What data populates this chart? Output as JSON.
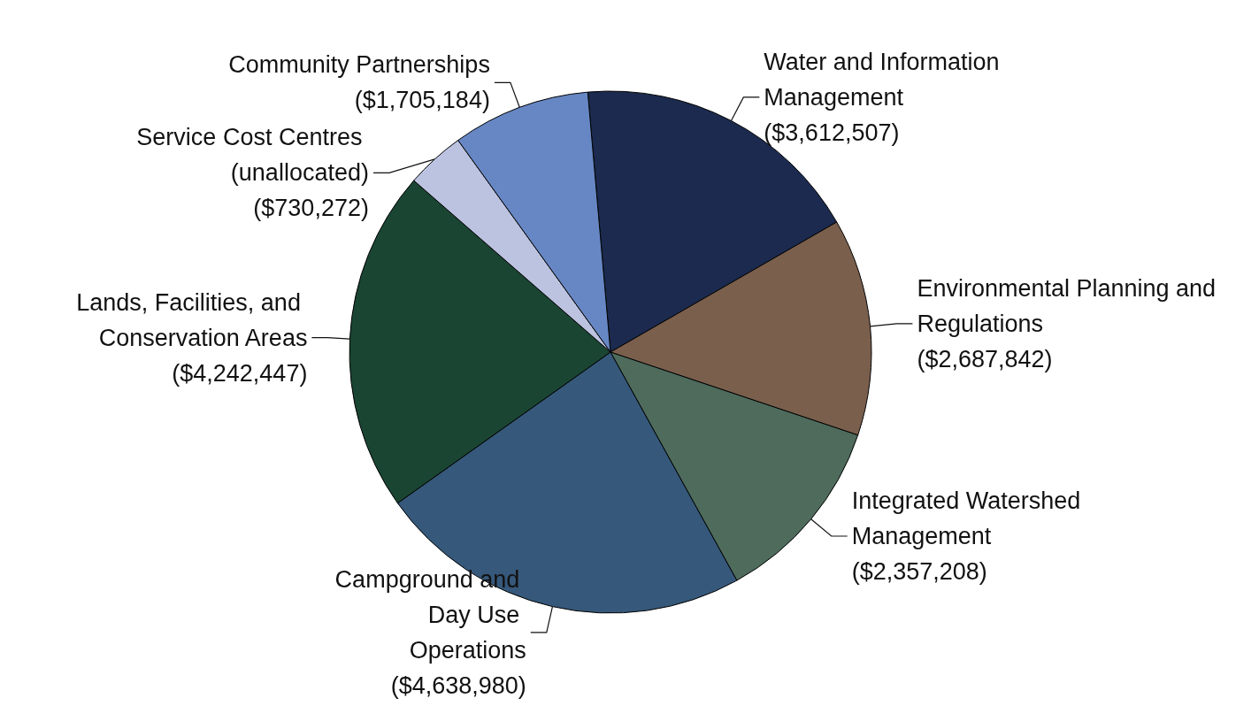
{
  "chart_data": {
    "type": "pie",
    "categories": [
      "Water and Information Management",
      "Environmental Planning and Regulations",
      "Integrated Watershed Management",
      "Campground and Day Use Operations",
      "Lands, Facilities, and Conservation Areas",
      "Service Cost Centres (unallocated)",
      "Community Partnerships"
    ],
    "values": [
      3612507,
      2687842,
      2357208,
      4638980,
      4242447,
      730272,
      1705184
    ],
    "value_labels": [
      "($3,612,507)",
      "($2,687,842)",
      "($2,357,208)",
      "($4,638,980)",
      "($4,242,447)",
      "($730,272)",
      "($1,705,184)"
    ],
    "colors": [
      "#1b2a4e",
      "#7a5f4d",
      "#4e6b5c",
      "#36587a",
      "#1a4533",
      "#bcc3e0",
      "#6787c4"
    ],
    "legend": false
  }
}
